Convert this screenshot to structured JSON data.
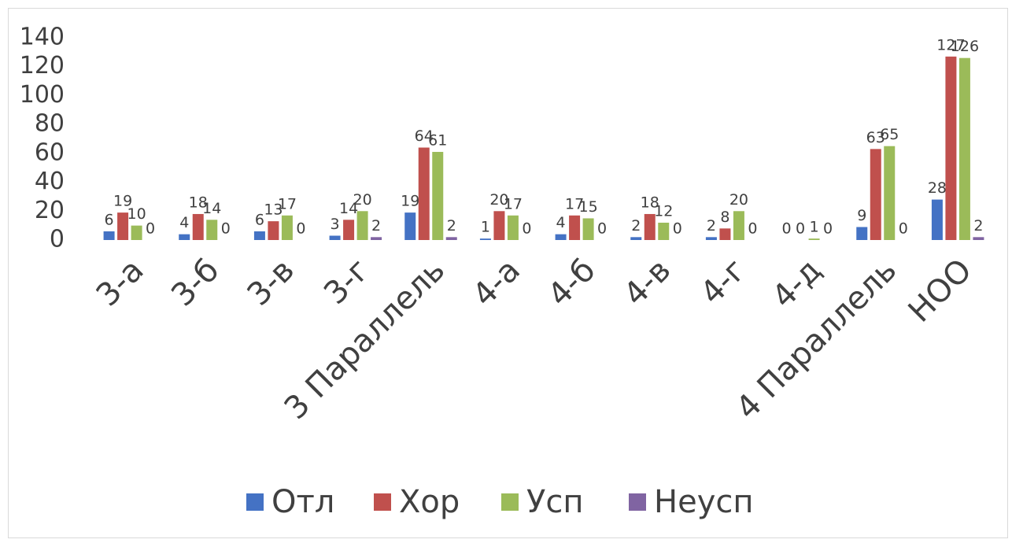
{
  "chart_data": {
    "type": "bar",
    "categories": [
      "3-а",
      "3-б",
      "3-в",
      "3-г",
      "3 Параллель",
      "4-а",
      "4-б",
      "4-в",
      "4-г",
      "4-д",
      "4 Параллель",
      "НОО"
    ],
    "series": [
      {
        "name": "Отл",
        "color": "#4472c4",
        "values": [
          6,
          4,
          6,
          3,
          19,
          1,
          4,
          2,
          2,
          0,
          9,
          28
        ]
      },
      {
        "name": "Хор",
        "color": "#c0504d",
        "values": [
          19,
          18,
          13,
          14,
          64,
          20,
          17,
          18,
          8,
          0,
          63,
          127
        ]
      },
      {
        "name": "Усп",
        "color": "#9bbb59",
        "values": [
          10,
          14,
          17,
          20,
          61,
          17,
          15,
          12,
          20,
          1,
          65,
          126
        ]
      },
      {
        "name": "Неусп",
        "color": "#8064a2",
        "values": [
          0,
          0,
          0,
          2,
          2,
          0,
          0,
          0,
          0,
          0,
          0,
          2
        ]
      }
    ],
    "ylim": [
      0,
      140
    ],
    "yticks": [
      0,
      20,
      40,
      60,
      80,
      100,
      120,
      140
    ],
    "grid": false,
    "legend": "bottom"
  }
}
